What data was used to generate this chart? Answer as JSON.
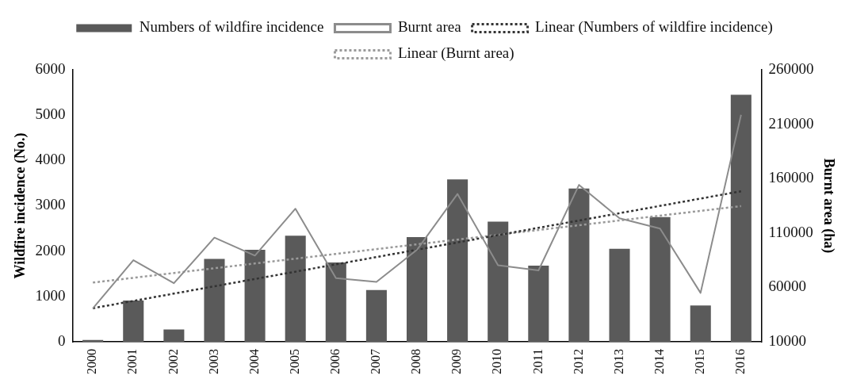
{
  "chart_data": {
    "type": "bar",
    "categories": [
      "2000",
      "2001",
      "2002",
      "2003",
      "2004",
      "2005",
      "2006",
      "2007",
      "2008",
      "2009",
      "2010",
      "2011",
      "2012",
      "2013",
      "2014",
      "2015",
      "2016"
    ],
    "ylabel": "Wildfire incidence (No.)",
    "y2label": "Burnt area (ha)",
    "ylim": [
      0,
      6000
    ],
    "yticks": [
      0,
      1000,
      2000,
      3000,
      4000,
      5000,
      6000
    ],
    "y2lim": [
      10000,
      260000
    ],
    "y2ticks": [
      10000,
      60000,
      110000,
      160000,
      210000,
      260000
    ],
    "grid": false,
    "legend": "top",
    "marker": "none",
    "series": [
      {
        "name": "Numbers of wildfire incidence",
        "color": "#5a5a5a",
        "values": [
          40,
          910,
          270,
          1830,
          2030,
          2340,
          1750,
          1140,
          2310,
          3580,
          2650,
          1680,
          3380,
          2050,
          2750,
          800,
          5450
        ]
      },
      {
        "name": "Burnt area",
        "type": "line",
        "axis": "y2",
        "color": "#8c8c8c",
        "line_style": "solid",
        "values": [
          40700,
          85000,
          63800,
          105700,
          89200,
          132300,
          68500,
          65000,
          94500,
          145900,
          80300,
          75600,
          154200,
          123500,
          114000,
          54900,
          218600
        ]
      },
      {
        "name": "Linear (Numbers of wildfire incidence)",
        "type": "line",
        "color": "#333333",
        "line_style": "dotted",
        "values": [
          740,
          null,
          null,
          null,
          null,
          null,
          null,
          null,
          null,
          null,
          null,
          null,
          null,
          null,
          null,
          null,
          3320
        ]
      },
      {
        "name": "Linear (Burnt area)",
        "type": "line",
        "axis": "y2",
        "color": "#9a9a9a",
        "line_style": "dotted",
        "values": [
          64400,
          null,
          null,
          null,
          null,
          null,
          null,
          null,
          null,
          null,
          null,
          null,
          null,
          null,
          null,
          null,
          134700
        ]
      }
    ]
  }
}
